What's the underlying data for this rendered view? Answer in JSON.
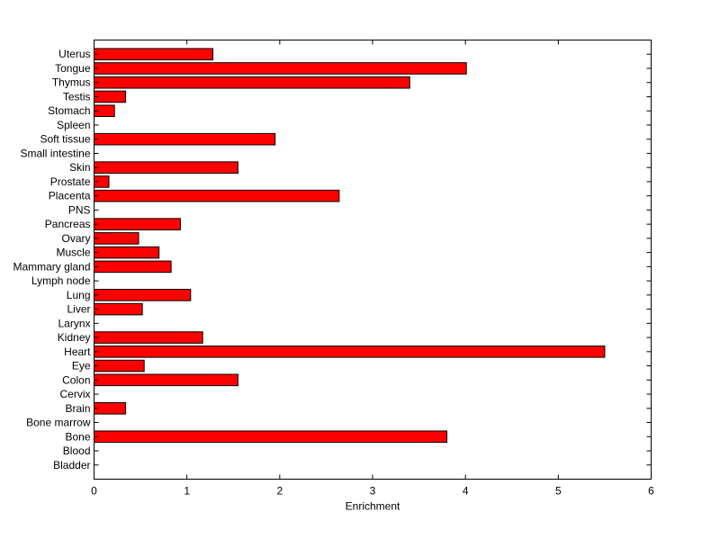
{
  "chart_data": {
    "type": "bar",
    "orientation": "horizontal",
    "title": "",
    "xlabel": "Enrichment",
    "ylabel": "",
    "xlim": [
      0,
      6
    ],
    "xticks": [
      0,
      1,
      2,
      3,
      4,
      5,
      6
    ],
    "grid": false,
    "legend": "none",
    "bar_color": "#ff0000",
    "bar_edge_color": "#000000",
    "categories": [
      "Bladder",
      "Blood",
      "Bone",
      "Bone marrow",
      "Brain",
      "Cervix",
      "Colon",
      "Eye",
      "Heart",
      "Kidney",
      "Larynx",
      "Liver",
      "Lung",
      "Lymph node",
      "Mammary gland",
      "Muscle",
      "Ovary",
      "Pancreas",
      "PNS",
      "Placenta",
      "Prostate",
      "Skin",
      "Small intestine",
      "Soft tissue",
      "Spleen",
      "Stomach",
      "Testis",
      "Thymus",
      "Tongue",
      "Uterus"
    ],
    "values": [
      0,
      0,
      3.8,
      0,
      0.34,
      0,
      1.55,
      0.54,
      5.5,
      1.17,
      0,
      0.52,
      1.04,
      0,
      0.83,
      0.7,
      0.48,
      0.93,
      0,
      2.64,
      0.16,
      1.55,
      0,
      1.95,
      0,
      0.22,
      0.34,
      3.4,
      4.01,
      1.28
    ]
  }
}
